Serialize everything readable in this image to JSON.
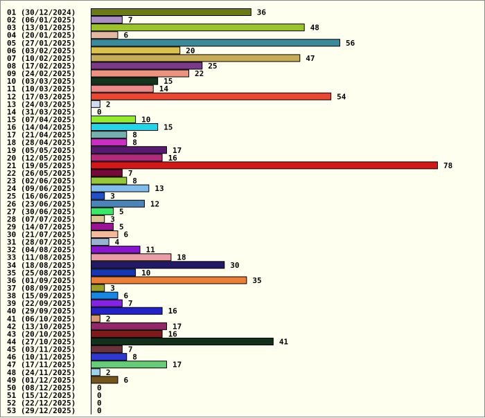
{
  "chart_data": {
    "type": "bar",
    "orientation": "horizontal",
    "title": "",
    "xlabel": "",
    "ylabel": "",
    "grid": false,
    "legend": "none",
    "xlim": [
      0,
      78
    ],
    "categories": [
      "01 (30/12/2024)",
      "02 (06/01/2025)",
      "03 (13/01/2025)",
      "04 (20/01/2025)",
      "05 (27/01/2025)",
      "06 (03/02/2025)",
      "07 (10/02/2025)",
      "08 (17/02/2025)",
      "09 (24/02/2025)",
      "10 (03/03/2025)",
      "11 (10/03/2025)",
      "12 (17/03/2025)",
      "13 (24/03/2025)",
      "14 (31/03/2025)",
      "15 (07/04/2025)",
      "16 (14/04/2025)",
      "17 (21/04/2025)",
      "18 (28/04/2025)",
      "19 (05/05/2025)",
      "20 (12/05/2025)",
      "21 (19/05/2025)",
      "22 (26/05/2025)",
      "23 (02/06/2025)",
      "24 (09/06/2025)",
      "25 (16/06/2025)",
      "26 (23/06/2025)",
      "27 (30/06/2025)",
      "28 (07/07/2025)",
      "29 (14/07/2025)",
      "30 (21/07/2025)",
      "31 (28/07/2025)",
      "32 (04/08/2025)",
      "33 (11/08/2025)",
      "34 (18/08/2025)",
      "35 (25/08/2025)",
      "36 (01/09/2025)",
      "37 (08/09/2025)",
      "38 (15/09/2025)",
      "39 (22/09/2025)",
      "40 (29/09/2025)",
      "41 (06/10/2025)",
      "42 (13/10/2025)",
      "43 (20/10/2025)",
      "44 (27/10/2025)",
      "45 (03/11/2025)",
      "46 (10/11/2025)",
      "47 (17/11/2025)",
      "48 (24/11/2025)",
      "49 (01/12/2025)",
      "50 (08/12/2025)",
      "51 (15/12/2025)",
      "52 (22/12/2025)",
      "53 (29/12/2025)"
    ],
    "values": [
      36,
      7,
      48,
      6,
      56,
      20,
      47,
      25,
      22,
      15,
      14,
      54,
      2,
      0,
      10,
      15,
      8,
      8,
      17,
      16,
      78,
      7,
      8,
      13,
      3,
      12,
      5,
      3,
      5,
      6,
      4,
      11,
      18,
      30,
      10,
      35,
      3,
      6,
      7,
      16,
      2,
      17,
      16,
      41,
      7,
      8,
      17,
      2,
      6,
      0,
      0,
      0,
      0
    ],
    "colors": [
      "#6b7a12",
      "#a98fc4",
      "#9ac42a",
      "#e3b9a2",
      "#3a8a9c",
      "#dcc24a",
      "#c8ab56",
      "#7a3a8a",
      "#ec9280",
      "#13341d",
      "#ec8a8a",
      "#ea4630",
      "#cfdcef",
      "#ffffff",
      "#92ec2a",
      "#22d5e8",
      "#74b0ae",
      "#cc2ec4",
      "#581a70",
      "#b42a7a",
      "#d41818",
      "#76083a",
      "#94c838",
      "#80bcec",
      "#2250cc",
      "#4a84b8",
      "#3ae868",
      "#dcc696",
      "#9c1296",
      "#f4ba9a",
      "#98b2d2",
      "#8a16d4",
      "#ec9ca6",
      "#221a66",
      "#1436b2",
      "#ec7e36",
      "#9ca028",
      "#1488e4",
      "#8622e4",
      "#2222c8",
      "#d89870",
      "#92286a",
      "#801a1a",
      "#12301a",
      "#6c323c",
      "#2e38d2",
      "#66cc78",
      "#a0d2ea",
      "#74561a",
      "#ffffff",
      "#ffffff",
      "#ffffff",
      "#ffffff"
    ]
  }
}
